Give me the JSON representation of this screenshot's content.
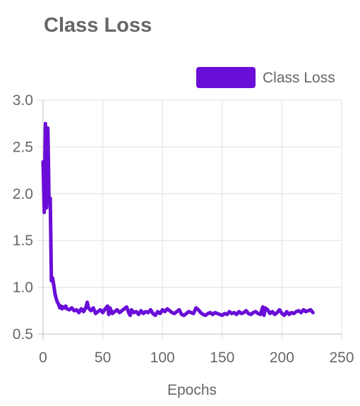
{
  "chart_data": {
    "type": "line",
    "title": "Class Loss",
    "xlabel": "Epochs",
    "ylabel": "",
    "xlim": [
      0,
      250
    ],
    "ylim": [
      0.5,
      3.0
    ],
    "x_ticks": [
      "0",
      "50",
      "100",
      "150",
      "200",
      "250"
    ],
    "y_ticks": [
      "0.5",
      "1.0",
      "1.5",
      "2.0",
      "2.5",
      "3.0"
    ],
    "grid": true,
    "legend_position": "top-right",
    "series": [
      {
        "name": "Class Loss",
        "color": "#6a0dd8",
        "x": [
          0,
          1,
          2,
          3,
          4,
          5,
          6,
          7,
          8,
          9,
          10,
          11,
          12,
          13,
          14,
          15,
          16,
          17,
          18,
          19,
          20,
          22,
          24,
          26,
          28,
          30,
          32,
          34,
          36,
          37,
          38,
          40,
          42,
          44,
          46,
          48,
          50,
          52,
          54,
          55,
          56,
          58,
          60,
          62,
          64,
          66,
          68,
          70,
          72,
          73,
          74,
          76,
          78,
          80,
          82,
          84,
          86,
          88,
          90,
          92,
          94,
          96,
          98,
          100,
          102,
          104,
          106,
          108,
          110,
          112,
          114,
          116,
          118,
          120,
          122,
          124,
          126,
          128,
          130,
          132,
          134,
          136,
          138,
          140,
          142,
          144,
          146,
          148,
          150,
          152,
          154,
          156,
          158,
          160,
          162,
          164,
          166,
          168,
          170,
          172,
          174,
          176,
          178,
          180,
          182,
          184,
          185,
          186,
          188,
          190,
          192,
          194,
          196,
          198,
          200,
          202,
          204,
          206,
          208,
          210,
          212,
          214,
          216,
          218,
          220,
          222,
          224,
          226
        ],
        "values": [
          2.34,
          1.8,
          2.75,
          1.85,
          2.7,
          1.9,
          1.95,
          1.07,
          1.1,
          1.02,
          0.93,
          0.88,
          0.84,
          0.82,
          0.78,
          0.8,
          0.77,
          0.79,
          0.78,
          0.8,
          0.77,
          0.76,
          0.78,
          0.75,
          0.76,
          0.73,
          0.77,
          0.74,
          0.79,
          0.84,
          0.78,
          0.75,
          0.78,
          0.72,
          0.74,
          0.76,
          0.73,
          0.77,
          0.8,
          0.71,
          0.78,
          0.72,
          0.74,
          0.76,
          0.73,
          0.75,
          0.77,
          0.79,
          0.72,
          0.7,
          0.76,
          0.73,
          0.74,
          0.71,
          0.75,
          0.72,
          0.74,
          0.73,
          0.76,
          0.72,
          0.7,
          0.74,
          0.72,
          0.76,
          0.74,
          0.77,
          0.75,
          0.73,
          0.72,
          0.74,
          0.76,
          0.71,
          0.7,
          0.72,
          0.74,
          0.73,
          0.72,
          0.78,
          0.76,
          0.73,
          0.71,
          0.7,
          0.72,
          0.73,
          0.71,
          0.73,
          0.72,
          0.71,
          0.7,
          0.72,
          0.71,
          0.74,
          0.72,
          0.73,
          0.71,
          0.74,
          0.72,
          0.73,
          0.75,
          0.72,
          0.71,
          0.73,
          0.74,
          0.72,
          0.71,
          0.79,
          0.7,
          0.78,
          0.76,
          0.72,
          0.74,
          0.71,
          0.73,
          0.76,
          0.72,
          0.7,
          0.74,
          0.71,
          0.73,
          0.72,
          0.74,
          0.75,
          0.73,
          0.76,
          0.74,
          0.75,
          0.76,
          0.73
        ]
      }
    ]
  }
}
